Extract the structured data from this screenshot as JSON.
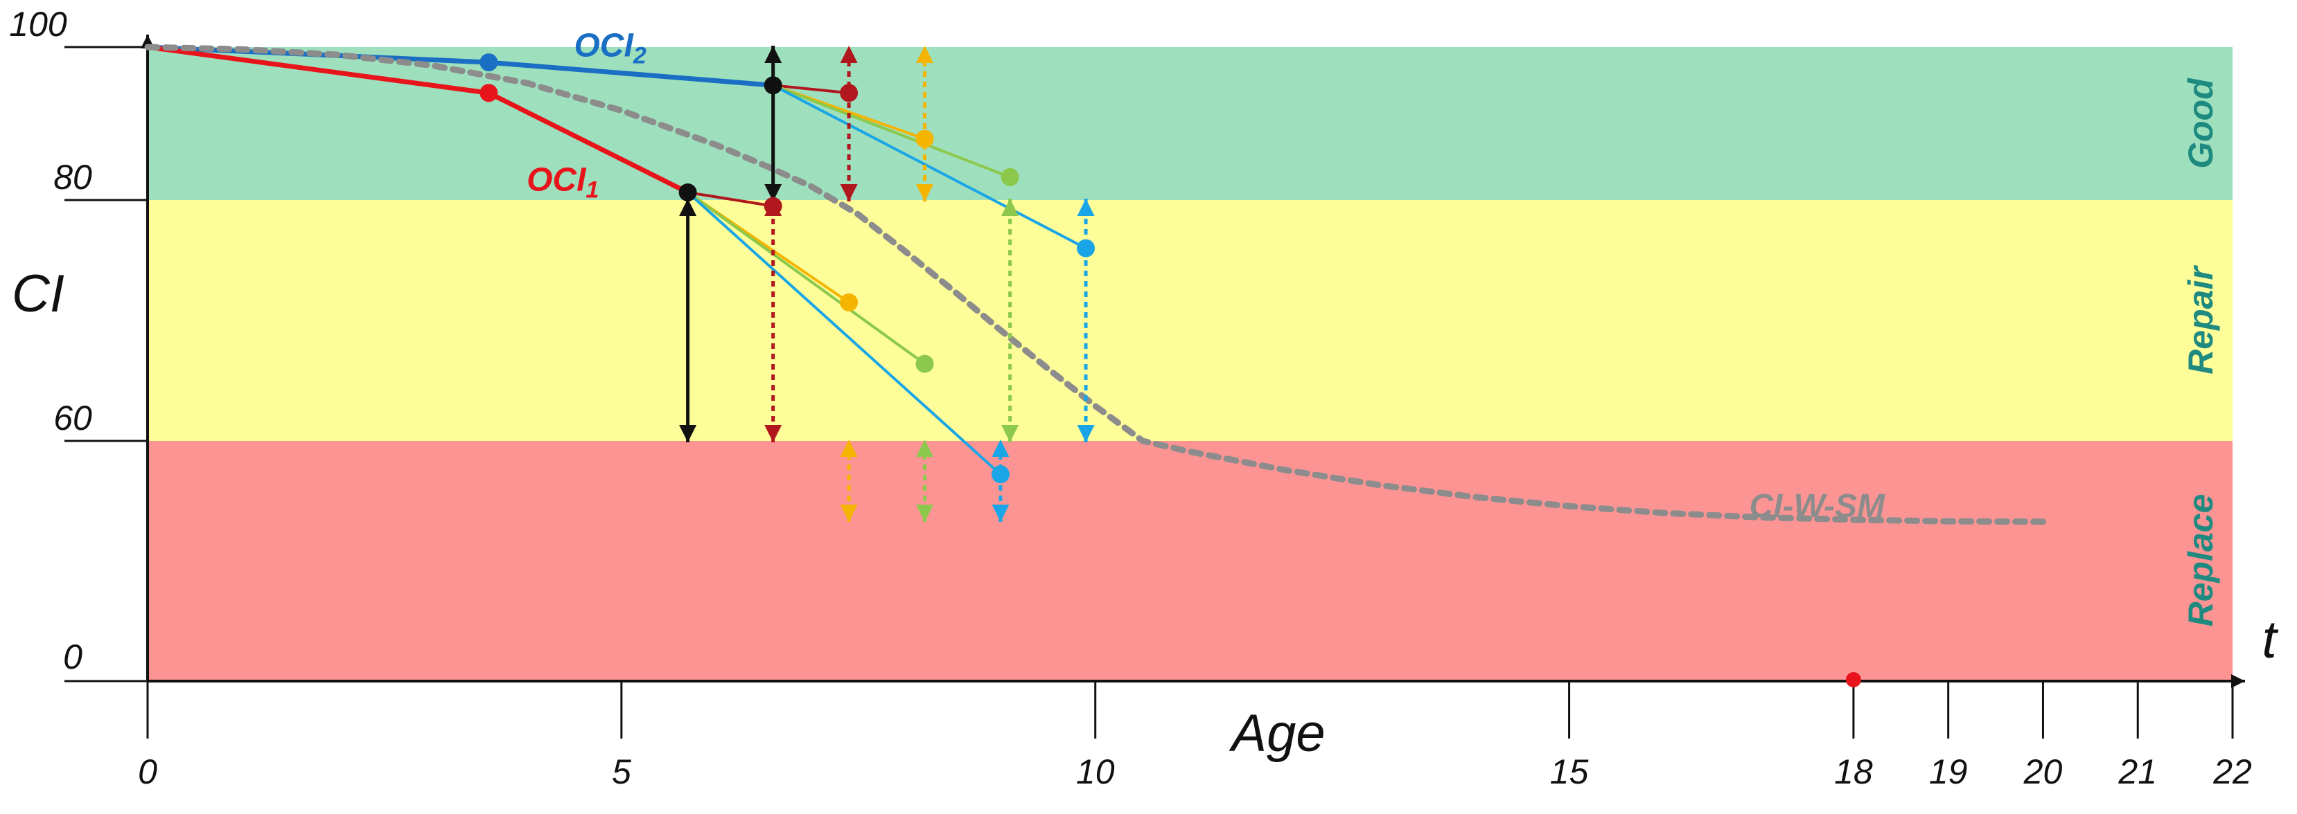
{
  "colors": {
    "good": "#9ee0bd",
    "repair": "#fdfd99",
    "replace": "#fd9494",
    "ocl1": "#e8141c",
    "ocl2": "#1a6fc4",
    "curve": "#8c8c8c",
    "zone_text": "#1f8a80",
    "black": "#111111",
    "darkred": "#b0181e",
    "orange": "#f5b400",
    "green": "#8cc84b",
    "cyan": "#1aa6e6"
  },
  "chart_data": {
    "type": "line",
    "title": "",
    "xlabel": "Age",
    "ylabel": "CI",
    "x_end_label": "t",
    "xlim": [
      0,
      22
    ],
    "ylim": [
      0,
      100
    ],
    "x_ticks": [
      {
        "value": 0,
        "label": "0"
      },
      {
        "value": 5,
        "label": "5"
      },
      {
        "value": 10,
        "label": "10"
      },
      {
        "value": 15,
        "label": "15"
      },
      {
        "value": 18,
        "label": "18"
      },
      {
        "value": 19,
        "label": "19"
      },
      {
        "value": 20,
        "label": "20"
      },
      {
        "value": 21,
        "label": "21"
      },
      {
        "value": 22,
        "label": "22"
      }
    ],
    "y_ticks": [
      {
        "value": 0,
        "label": "0"
      },
      {
        "value": 60,
        "label": "60"
      },
      {
        "value": 80,
        "label": "80"
      },
      {
        "value": 100,
        "label": "100"
      }
    ],
    "zones": [
      {
        "name": "Good",
        "from": 80,
        "to": 100,
        "color_key": "good"
      },
      {
        "name": "Repair",
        "from": 60,
        "to": 80,
        "color_key": "repair"
      },
      {
        "name": "Replace",
        "from": 0,
        "to": 60,
        "color_key": "replace"
      }
    ],
    "series": [
      {
        "name": "OCI2",
        "color_key": "ocl2",
        "width": 7,
        "points": [
          [
            0,
            100
          ],
          [
            3.6,
            98
          ],
          [
            6.6,
            95
          ]
        ],
        "markers": [
          [
            3.6,
            98
          ]
        ],
        "label": "OCI",
        "label_sub": "2",
        "label_at": [
          4.5,
          98.8
        ]
      },
      {
        "name": "OCI1",
        "color_key": "ocl1",
        "width": 7,
        "points": [
          [
            0,
            100
          ],
          [
            3.6,
            94
          ],
          [
            5.7,
            81
          ]
        ],
        "markers": [
          [
            3.6,
            94
          ]
        ],
        "label": "OCI",
        "label_sub": "1",
        "label_at": [
          4.0,
          81.2
        ]
      },
      {
        "name": "CI-W-SM",
        "color_key": "curve",
        "width": 9,
        "dashed": true,
        "points": [
          [
            0,
            100
          ],
          [
            1,
            99.7
          ],
          [
            2,
            99
          ],
          [
            3,
            97.6
          ],
          [
            4,
            95.3
          ],
          [
            5,
            91.7
          ],
          [
            6,
            87.2
          ],
          [
            6.5,
            84.6
          ],
          [
            7,
            81.8
          ],
          [
            7.5,
            78.8
          ],
          [
            8,
            75.7
          ],
          [
            8.5,
            72.5
          ],
          [
            9,
            69.2
          ],
          [
            9.5,
            66
          ],
          [
            10,
            62.9
          ],
          [
            10.5,
            60
          ],
          [
            11,
            57.3
          ],
          [
            12,
            52.7
          ],
          [
            13,
            48.9
          ],
          [
            14,
            45.9
          ],
          [
            15,
            43.6
          ],
          [
            16,
            41.9
          ],
          [
            17,
            40.8
          ],
          [
            18,
            40.2
          ],
          [
            19,
            39.8
          ],
          [
            20,
            39.7
          ]
        ],
        "label": "CI-W-SM",
        "label_at": [
          16.9,
          40.9
        ]
      }
    ],
    "extra_points": [
      {
        "name": "failure-age",
        "x": 18,
        "y": 0,
        "color_key": "ocl1"
      }
    ],
    "branches": [
      {
        "from": [
          6.6,
          95
        ],
        "to": [
          7.4,
          94
        ],
        "color_key": "darkred"
      },
      {
        "from": [
          6.6,
          95
        ],
        "to": [
          8.2,
          88
        ],
        "color_key": "orange"
      },
      {
        "from": [
          6.6,
          95
        ],
        "to": [
          9.1,
          83
        ],
        "color_key": "green"
      },
      {
        "from": [
          6.6,
          95
        ],
        "to": [
          9.9,
          76
        ],
        "color_key": "cyan"
      },
      {
        "from": [
          5.7,
          81
        ],
        "to": [
          6.6,
          79.5
        ],
        "color_key": "darkred"
      },
      {
        "from": [
          5.7,
          81
        ],
        "to": [
          7.4,
          71.5
        ],
        "color_key": "orange"
      },
      {
        "from": [
          5.7,
          81
        ],
        "to": [
          8.2,
          66.4
        ],
        "color_key": "green"
      },
      {
        "from": [
          5.7,
          81
        ],
        "to": [
          9.0,
          51.6
        ],
        "color_key": "cyan"
      }
    ],
    "branch_points": [
      {
        "x": 6.6,
        "y": 95,
        "color_key": "black"
      },
      {
        "x": 7.4,
        "y": 94,
        "color_key": "darkred"
      },
      {
        "x": 8.2,
        "y": 88,
        "color_key": "orange"
      },
      {
        "x": 9.1,
        "y": 83,
        "color_key": "green"
      },
      {
        "x": 9.9,
        "y": 76,
        "color_key": "cyan"
      },
      {
        "x": 5.7,
        "y": 81,
        "color_key": "black"
      },
      {
        "x": 6.6,
        "y": 79.5,
        "color_key": "darkred"
      },
      {
        "x": 7.4,
        "y": 71.5,
        "color_key": "orange"
      },
      {
        "x": 8.2,
        "y": 66.4,
        "color_key": "green"
      },
      {
        "x": 9.0,
        "y": 51.6,
        "color_key": "cyan"
      }
    ],
    "range_arrows": [
      {
        "x": 6.6,
        "from": 80,
        "to": 100,
        "color_key": "black",
        "dashed": false
      },
      {
        "x": 7.4,
        "from": 80,
        "to": 100,
        "color_key": "darkred",
        "dashed": true
      },
      {
        "x": 8.2,
        "from": 80,
        "to": 100,
        "color_key": "orange",
        "dashed": true
      },
      {
        "x": 9.1,
        "from": 60,
        "to": 80,
        "color_key": "green",
        "dashed": true
      },
      {
        "x": 9.9,
        "from": 60,
        "to": 80,
        "color_key": "cyan",
        "dashed": true
      },
      {
        "x": 5.7,
        "from": 60,
        "to": 80,
        "color_key": "black",
        "dashed": false
      },
      {
        "x": 6.6,
        "from": 60,
        "to": 80,
        "color_key": "darkred",
        "dashed": true
      },
      {
        "x": 7.4,
        "from": 40,
        "to": 60,
        "color_key": "orange",
        "dashed": true
      },
      {
        "x": 8.2,
        "from": 40,
        "to": 60,
        "color_key": "green",
        "dashed": true
      },
      {
        "x": 9.0,
        "from": 40,
        "to": 60,
        "color_key": "cyan",
        "dashed": true
      }
    ]
  }
}
